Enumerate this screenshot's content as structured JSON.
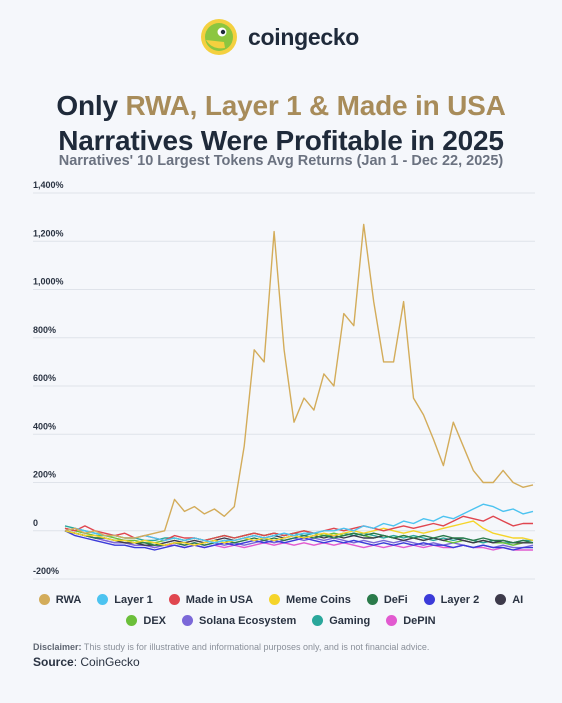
{
  "brand": "coingecko",
  "chart_data": {
    "type": "line",
    "title": {
      "lead": "Only",
      "highlight": "RWA, Layer 1 & Made in USA",
      "rest": "Narratives Were Profitable in 2025"
    },
    "subtitle": "Narratives' 10 Largest Tokens Avg Returns (Jan 1 - Dec 22, 2025)",
    "ylim": [
      -200,
      1400
    ],
    "yticks": [
      {
        "value": -200,
        "label": "-200%"
      },
      0,
      {
        "value": 200,
        "label": "200%"
      },
      {
        "value": 400,
        "label": "400%"
      },
      {
        "value": 600,
        "label": "600%"
      },
      {
        "value": 800,
        "label": "800%"
      },
      {
        "value": 1000,
        "label": "1,000%"
      },
      {
        "value": 1200,
        "label": "1,200%"
      },
      {
        "value": 1400,
        "label": "1,400%"
      }
    ],
    "grid": true,
    "series": [
      {
        "name": "RWA",
        "color": "#d3ac5a",
        "values": [
          0,
          10,
          -10,
          0,
          -20,
          -20,
          -30,
          -30,
          -20,
          -10,
          0,
          130,
          80,
          100,
          70,
          90,
          60,
          100,
          350,
          750,
          700,
          1240,
          750,
          450,
          550,
          500,
          650,
          600,
          900,
          850,
          1270,
          950,
          700,
          700,
          950,
          550,
          480,
          380,
          270,
          450,
          350,
          250,
          200,
          200,
          250,
          200,
          180,
          190
        ]
      },
      {
        "name": "Layer 1",
        "color": "#4cc3f0",
        "values": [
          0,
          10,
          0,
          -10,
          -20,
          -20,
          -30,
          -30,
          -20,
          -30,
          -40,
          -30,
          -40,
          -30,
          -40,
          -50,
          -40,
          -40,
          -30,
          -20,
          -30,
          -20,
          -10,
          -20,
          -10,
          -10,
          0,
          0,
          10,
          0,
          20,
          10,
          30,
          20,
          40,
          30,
          50,
          40,
          60,
          50,
          70,
          90,
          110,
          100,
          80,
          90,
          70,
          80
        ]
      },
      {
        "name": "Made in USA",
        "color": "#e0464f",
        "values": [
          10,
          0,
          20,
          0,
          -10,
          -20,
          -10,
          -30,
          -20,
          -30,
          -40,
          -20,
          -30,
          -30,
          -40,
          -30,
          -20,
          -30,
          -20,
          -10,
          -20,
          -10,
          -20,
          -10,
          0,
          -10,
          0,
          10,
          0,
          10,
          20,
          10,
          0,
          10,
          20,
          10,
          20,
          30,
          20,
          40,
          60,
          50,
          40,
          60,
          40,
          20,
          30,
          30
        ]
      },
      {
        "name": "Meme Coins",
        "color": "#f5d42a",
        "values": [
          0,
          -10,
          -20,
          -20,
          -30,
          -40,
          -40,
          -50,
          -40,
          -50,
          -60,
          -50,
          -50,
          -60,
          -50,
          -40,
          -50,
          -40,
          -30,
          -40,
          -30,
          -40,
          -30,
          -20,
          -30,
          -20,
          -10,
          -20,
          -10,
          0,
          -10,
          0,
          10,
          0,
          -10,
          0,
          -10,
          0,
          10,
          20,
          30,
          40,
          10,
          -10,
          -20,
          -30,
          -30,
          -40
        ]
      },
      {
        "name": "DeFi",
        "color": "#2a7a4a",
        "values": [
          0,
          -10,
          -20,
          -30,
          -30,
          -40,
          -40,
          -50,
          -50,
          -60,
          -60,
          -50,
          -60,
          -50,
          -60,
          -50,
          -40,
          -50,
          -40,
          -30,
          -40,
          -30,
          -40,
          -30,
          -20,
          -30,
          -20,
          -30,
          -20,
          -10,
          -20,
          -10,
          -20,
          -30,
          -20,
          -30,
          -20,
          -30,
          -20,
          -30,
          -30,
          -40,
          -30,
          -40,
          -40,
          -50,
          -40,
          -50
        ]
      },
      {
        "name": "Layer 2",
        "color": "#3b3bd9",
        "values": [
          0,
          -20,
          -30,
          -40,
          -50,
          -60,
          -60,
          -70,
          -70,
          -80,
          -70,
          -60,
          -70,
          -60,
          -70,
          -60,
          -50,
          -60,
          -50,
          -40,
          -50,
          -40,
          -50,
          -40,
          -30,
          -40,
          -50,
          -40,
          -50,
          -40,
          -50,
          -60,
          -50,
          -60,
          -50,
          -60,
          -50,
          -60,
          -60,
          -70,
          -60,
          -70,
          -60,
          -70,
          -70,
          -80,
          -70,
          -70
        ]
      },
      {
        "name": "AI",
        "color": "#3d3a4a",
        "values": [
          0,
          -10,
          -20,
          -30,
          -30,
          -40,
          -50,
          -50,
          -60,
          -60,
          -50,
          -40,
          -50,
          -40,
          -50,
          -40,
          -30,
          -40,
          -30,
          -20,
          -30,
          -20,
          -30,
          -20,
          -30,
          -20,
          -30,
          -20,
          -30,
          -20,
          -30,
          -30,
          -20,
          -30,
          -40,
          -30,
          -40,
          -30,
          -40,
          -30,
          -40,
          -50,
          -40,
          -50,
          -40,
          -50,
          -50,
          -50
        ]
      },
      {
        "name": "DEX",
        "color": "#6bbf3a",
        "values": [
          10,
          0,
          -10,
          -20,
          -20,
          -30,
          -40,
          -40,
          -50,
          -50,
          -40,
          -30,
          -40,
          -30,
          -40,
          -30,
          -20,
          -30,
          -20,
          -10,
          -20,
          -10,
          -20,
          -10,
          0,
          -10,
          -20,
          -10,
          -20,
          -10,
          -20,
          -30,
          -20,
          -30,
          -20,
          -30,
          -40,
          -30,
          -40,
          -50,
          -40,
          -50,
          -40,
          -50,
          -50,
          -60,
          -50,
          -50
        ]
      },
      {
        "name": "Solana Ecosystem",
        "color": "#7b68d8",
        "values": [
          0,
          -10,
          -20,
          -30,
          -40,
          -50,
          -50,
          -60,
          -60,
          -70,
          -60,
          -50,
          -60,
          -50,
          -60,
          -50,
          -60,
          -50,
          -60,
          -50,
          -40,
          -50,
          -40,
          -30,
          -40,
          -30,
          -40,
          -30,
          -40,
          -50,
          -40,
          -50,
          -40,
          -50,
          -40,
          -50,
          -60,
          -50,
          -60,
          -50,
          -60,
          -70,
          -60,
          -70,
          -60,
          -70,
          -70,
          -60
        ]
      },
      {
        "name": "Gaming",
        "color": "#2aa79b",
        "values": [
          20,
          10,
          0,
          -10,
          -20,
          -20,
          -30,
          -30,
          -40,
          -40,
          -30,
          -30,
          -40,
          -30,
          -40,
          -30,
          -20,
          -30,
          -20,
          -10,
          -20,
          -10,
          -20,
          -10,
          -20,
          -10,
          -20,
          -20,
          -10,
          -20,
          -10,
          -20,
          -30,
          -20,
          -30,
          -20,
          -30,
          -40,
          -30,
          -40,
          -30,
          -40,
          -50,
          -40,
          -50,
          -50,
          -40,
          -40
        ]
      },
      {
        "name": "DePIN",
        "color": "#e25ad0",
        "values": [
          0,
          -10,
          -20,
          -30,
          -40,
          -50,
          -50,
          -60,
          -60,
          -70,
          -60,
          -60,
          -70,
          -60,
          -70,
          -60,
          -70,
          -60,
          -70,
          -60,
          -50,
          -60,
          -50,
          -60,
          -50,
          -60,
          -50,
          -60,
          -50,
          -60,
          -70,
          -60,
          -70,
          -60,
          -70,
          -60,
          -70,
          -60,
          -70,
          -70,
          -60,
          -70,
          -70,
          -80,
          -70,
          -80,
          -80,
          -80
        ]
      }
    ]
  },
  "disclaimer": {
    "label": "Disclaimer:",
    "text": "This study is for illustrative and informational purposes only, and is not financial advice."
  },
  "source": {
    "label": "Source",
    "text": ": CoinGecko"
  }
}
